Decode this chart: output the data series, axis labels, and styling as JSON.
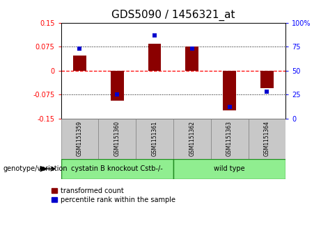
{
  "title": "GDS5090 / 1456321_at",
  "samples": [
    "GSM1151359",
    "GSM1151360",
    "GSM1151361",
    "GSM1151362",
    "GSM1151363",
    "GSM1151364"
  ],
  "red_values": [
    0.048,
    -0.095,
    0.085,
    0.075,
    -0.125,
    -0.055
  ],
  "blue_percentiles": [
    73,
    25,
    87,
    73,
    12,
    28
  ],
  "ylim": [
    -0.15,
    0.15
  ],
  "yticks_left": [
    -0.15,
    -0.075,
    0,
    0.075,
    0.15
  ],
  "yticks_right": [
    0,
    25,
    50,
    75,
    100
  ],
  "yticks_right_labels": [
    "0",
    "25",
    "50",
    "75",
    "100%"
  ],
  "hlines": [
    0.075,
    0,
    -0.075
  ],
  "hline_styles": [
    "dotted",
    "dashed",
    "dotted"
  ],
  "hline_colors": [
    "black",
    "red",
    "black"
  ],
  "bar_color": "#8B0000",
  "dot_color": "#0000CD",
  "bar_width": 0.35,
  "dot_size": 22,
  "genotype_label": "genotype/variation",
  "legend_red": "transformed count",
  "legend_blue": "percentile rank within the sample",
  "bg_color": "#ffffff",
  "plot_bg": "#ffffff",
  "xlabel_area_color": "#c8c8c8",
  "group1_label": "cystatin B knockout Cstb-/-",
  "group2_label": "wild type",
  "group_color": "#90EE90",
  "group_border_color": "#228B22",
  "title_fontsize": 11,
  "tick_fontsize": 7,
  "label_fontsize": 5.5,
  "geno_fontsize": 7
}
